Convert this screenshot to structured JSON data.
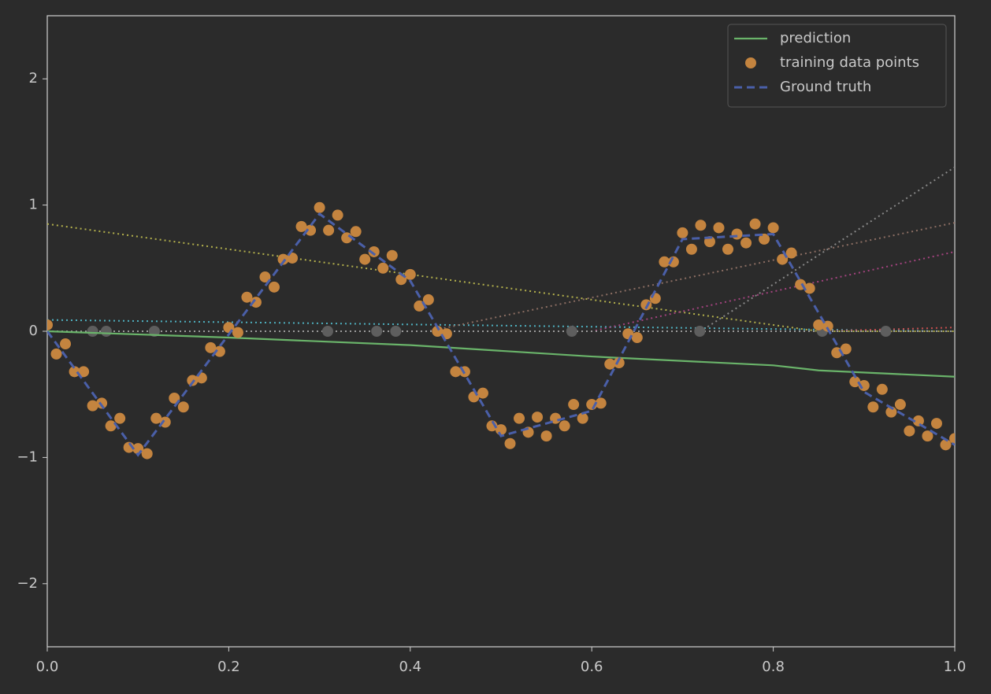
{
  "chart_data": {
    "type": "line",
    "xlim": [
      0,
      1
    ],
    "ylim": [
      -2.5,
      2.5
    ],
    "xticks": [
      {
        "value": 0,
        "label": "0.0"
      },
      0.2,
      0.4,
      0.6,
      0.8,
      {
        "value": 1,
        "label": "1.0"
      }
    ],
    "yticks": [
      {
        "value": -2,
        "label": "−2"
      },
      {
        "value": -1,
        "label": "−1"
      },
      0,
      1,
      2
    ],
    "grid": false,
    "legend": "upper right",
    "series": [
      {
        "type": "line",
        "style": "dotted",
        "color": "#b4b14c",
        "x": [
          0,
          0.85,
          1
        ],
        "values": [
          0.85,
          0,
          0
        ]
      },
      {
        "type": "line",
        "style": "dotted",
        "color": "#4fb0bf",
        "x": [
          0,
          1
        ],
        "values": [
          0.09,
          0
        ]
      },
      {
        "type": "line",
        "style": "dotted",
        "color": "#888888",
        "x": [
          0,
          0.72,
          1
        ],
        "values": [
          0,
          0,
          1.3
        ]
      },
      {
        "type": "line",
        "style": "dotted",
        "color": "#8c6e63",
        "x": [
          0,
          0.42,
          1
        ],
        "values": [
          0,
          0,
          0.86
        ]
      },
      {
        "type": "line",
        "style": "dotted",
        "color": "#a2437e",
        "x": [
          0,
          0.6,
          1
        ],
        "values": [
          0,
          0,
          0.63
        ]
      },
      {
        "type": "line",
        "style": "dotted",
        "color": "#c44e4e",
        "x": [
          0,
          0.85,
          1
        ],
        "values": [
          0,
          0,
          0.03
        ]
      },
      {
        "type": "line",
        "style": "dotted",
        "color": "#9a9a9a",
        "x": [
          0,
          1
        ],
        "values": [
          0,
          0
        ]
      },
      {
        "type": "scatter",
        "color": "#5e5e5e",
        "x": [
          0.05,
          0.065,
          0.118,
          0.309,
          0.363,
          0.384,
          0.578,
          0.719,
          0.854,
          0.924
        ],
        "values": [
          0,
          0,
          0,
          0,
          0,
          0,
          0,
          0,
          0,
          0
        ]
      },
      {
        "type": "line",
        "style": "solid",
        "name": "prediction",
        "color": "#6ab46a",
        "x": [
          0,
          0.2,
          0.4,
          0.6,
          0.8,
          0.85,
          1
        ],
        "values": [
          0,
          -0.05,
          -0.11,
          -0.2,
          -0.27,
          -0.31,
          -0.36
        ]
      },
      {
        "type": "scatter",
        "name": "training data points",
        "color": "#c4843f",
        "x": [
          0,
          0.01,
          0.02,
          0.03,
          0.04,
          0.05,
          0.06,
          0.07,
          0.08,
          0.09,
          0.1,
          0.11,
          0.12,
          0.13,
          0.14,
          0.15,
          0.16,
          0.17,
          0.18,
          0.19,
          0.2,
          0.21,
          0.22,
          0.23,
          0.24,
          0.25,
          0.26,
          0.27,
          0.28,
          0.29,
          0.3,
          0.31,
          0.32,
          0.33,
          0.34,
          0.35,
          0.36,
          0.37,
          0.38,
          0.39,
          0.4,
          0.41,
          0.42,
          0.43,
          0.44,
          0.45,
          0.46,
          0.47,
          0.48,
          0.49,
          0.5,
          0.51,
          0.52,
          0.53,
          0.54,
          0.55,
          0.56,
          0.57,
          0.58,
          0.59,
          0.6,
          0.61,
          0.62,
          0.63,
          0.64,
          0.65,
          0.66,
          0.67,
          0.68,
          0.69,
          0.7,
          0.71,
          0.72,
          0.73,
          0.74,
          0.75,
          0.76,
          0.77,
          0.78,
          0.79,
          0.8,
          0.81,
          0.82,
          0.83,
          0.84,
          0.85,
          0.86,
          0.87,
          0.88,
          0.89,
          0.9,
          0.91,
          0.92,
          0.93,
          0.94,
          0.95,
          0.96,
          0.97,
          0.98,
          0.99,
          1
        ],
        "values": [
          0.05,
          -0.18,
          -0.1,
          -0.32,
          -0.32,
          -0.59,
          -0.57,
          -0.75,
          -0.69,
          -0.92,
          -0.93,
          -0.97,
          -0.69,
          -0.72,
          -0.53,
          -0.6,
          -0.39,
          -0.37,
          -0.13,
          -0.16,
          0.03,
          -0.01,
          0.27,
          0.23,
          0.43,
          0.35,
          0.57,
          0.58,
          0.83,
          0.8,
          0.98,
          0.8,
          0.92,
          0.74,
          0.79,
          0.57,
          0.63,
          0.5,
          0.6,
          0.41,
          0.45,
          0.2,
          0.25,
          0,
          -0.02,
          -0.32,
          -0.32,
          -0.52,
          -0.49,
          -0.75,
          -0.78,
          -0.89,
          -0.69,
          -0.8,
          -0.68,
          -0.83,
          -0.69,
          -0.75,
          -0.58,
          -0.69,
          -0.58,
          -0.57,
          -0.26,
          -0.25,
          -0.02,
          -0.05,
          0.21,
          0.26,
          0.55,
          0.55,
          0.78,
          0.65,
          0.84,
          0.71,
          0.82,
          0.65,
          0.77,
          0.7,
          0.85,
          0.73,
          0.82,
          0.57,
          0.62,
          0.37,
          0.34,
          0.05,
          0.04,
          -0.17,
          -0.14,
          -0.4,
          -0.43,
          -0.6,
          -0.46,
          -0.64,
          -0.58,
          -0.79,
          -0.71,
          -0.83,
          -0.73,
          -0.9,
          -0.85
        ]
      },
      {
        "type": "line",
        "style": "dashed",
        "name": "Ground truth",
        "color": "#4a5fa8",
        "x": [
          0,
          0.1,
          0.3,
          0.4,
          0.5,
          0.6,
          0.7,
          0.8,
          0.9,
          1
        ],
        "values": [
          0,
          -0.98,
          0.93,
          0.4,
          -0.83,
          -0.63,
          0.73,
          0.77,
          -0.48,
          -0.9
        ]
      }
    ]
  }
}
